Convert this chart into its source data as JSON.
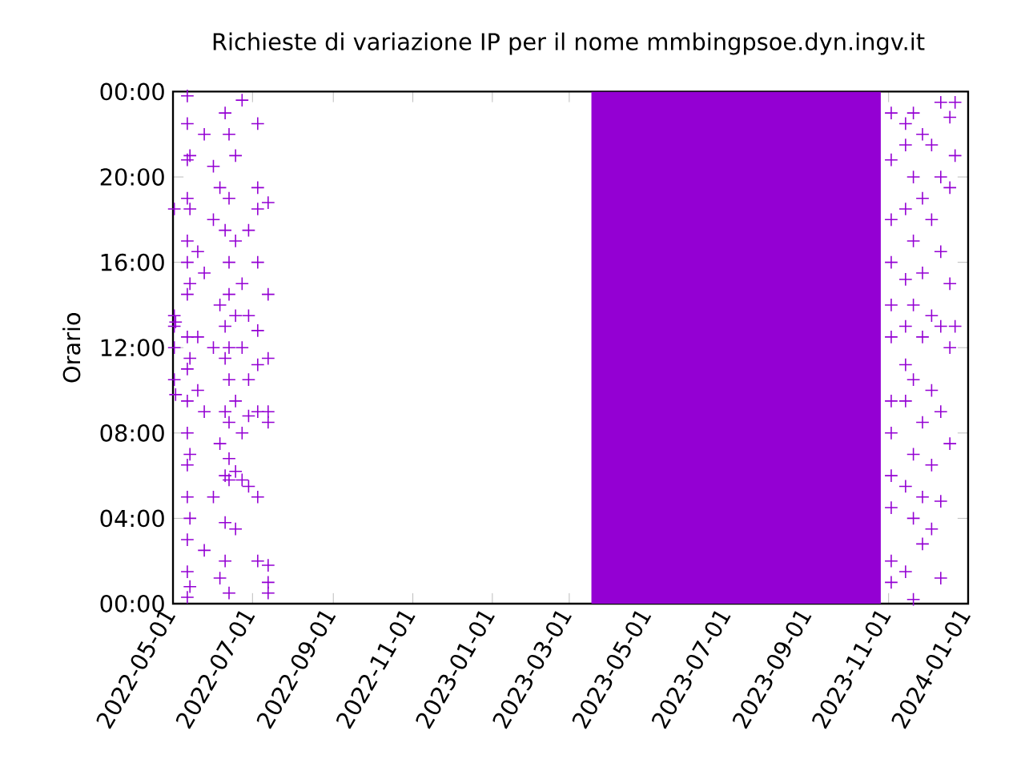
{
  "chart_data": {
    "type": "scatter",
    "title": "Richieste di variazione IP per il nome mmbingpsoe.dyn.ingv.it",
    "ylabel": "Orario",
    "xlim": [
      "2022-05-01",
      "2024-01-01"
    ],
    "xticks": [
      "2022-05-01",
      "2022-07-01",
      "2022-09-01",
      "2022-11-01",
      "2023-01-01",
      "2023-03-01",
      "2023-05-01",
      "2023-07-01",
      "2023-09-01",
      "2023-11-01",
      "2024-01-01"
    ],
    "ylim": [
      0,
      24
    ],
    "yticks": [
      {
        "value": 0,
        "label": "00:00"
      },
      {
        "value": 4,
        "label": "04:00"
      },
      {
        "value": 8,
        "label": "08:00"
      },
      {
        "value": 12,
        "label": "12:00"
      },
      {
        "value": 16,
        "label": "16:00"
      },
      {
        "value": 20,
        "label": "20:00"
      },
      {
        "value": 24,
        "label": "00:00"
      }
    ],
    "marker": "cross",
    "grid": false,
    "bands": [
      {
        "axis": "x",
        "from": "2023-03-18",
        "to": "2023-10-26",
        "color": "#9400d3"
      }
    ],
    "series": [
      {
        "color": "#9400d3",
        "x": [
          "2022-05-02",
          "2022-05-02",
          "2022-05-02",
          "2022-05-02",
          "2022-05-02",
          "2022-05-03",
          "2022-05-03",
          "2022-05-12",
          "2022-05-12",
          "2022-05-12",
          "2022-05-12",
          "2022-05-12",
          "2022-05-12",
          "2022-05-12",
          "2022-05-12",
          "2022-05-12",
          "2022-05-12",
          "2022-05-12",
          "2022-05-12",
          "2022-05-12",
          "2022-05-12",
          "2022-05-12",
          "2022-05-12",
          "2022-05-14",
          "2022-05-14",
          "2022-05-14",
          "2022-05-14",
          "2022-05-14",
          "2022-05-14",
          "2022-05-14",
          "2022-05-20",
          "2022-05-20",
          "2022-05-20",
          "2022-05-25",
          "2022-05-25",
          "2022-05-25",
          "2022-05-25",
          "2022-06-01",
          "2022-06-01",
          "2022-06-01",
          "2022-06-01",
          "2022-06-06",
          "2022-06-06",
          "2022-06-06",
          "2022-06-06",
          "2022-06-10",
          "2022-06-10",
          "2022-06-10",
          "2022-06-10",
          "2022-06-10",
          "2022-06-10",
          "2022-06-10",
          "2022-06-10",
          "2022-06-13",
          "2022-06-13",
          "2022-06-13",
          "2022-06-13",
          "2022-06-13",
          "2022-06-13",
          "2022-06-13",
          "2022-06-13",
          "2022-06-13",
          "2022-06-13",
          "2022-06-18",
          "2022-06-18",
          "2022-06-18",
          "2022-06-18",
          "2022-06-18",
          "2022-06-18",
          "2022-06-23",
          "2022-06-23",
          "2022-06-23",
          "2022-06-23",
          "2022-06-23",
          "2022-06-28",
          "2022-06-28",
          "2022-06-28",
          "2022-06-28",
          "2022-06-28",
          "2022-07-05",
          "2022-07-05",
          "2022-07-05",
          "2022-07-05",
          "2022-07-05",
          "2022-07-05",
          "2022-07-05",
          "2022-07-05",
          "2022-07-05",
          "2022-07-13",
          "2022-07-13",
          "2022-07-13",
          "2022-07-13",
          "2022-07-13",
          "2022-07-13",
          "2022-07-13",
          "2022-07-13",
          "2023-11-03",
          "2023-11-03",
          "2023-11-03",
          "2023-11-03",
          "2023-11-03",
          "2023-11-03",
          "2023-11-03",
          "2023-11-03",
          "2023-11-03",
          "2023-11-03",
          "2023-11-03",
          "2023-11-03",
          "2023-11-14",
          "2023-11-14",
          "2023-11-14",
          "2023-11-14",
          "2023-11-14",
          "2023-11-14",
          "2023-11-14",
          "2023-11-14",
          "2023-11-14",
          "2023-11-20",
          "2023-11-20",
          "2023-11-20",
          "2023-11-20",
          "2023-11-20",
          "2023-11-20",
          "2023-11-20",
          "2023-11-20",
          "2023-11-27",
          "2023-11-27",
          "2023-11-27",
          "2023-11-27",
          "2023-11-27",
          "2023-11-27",
          "2023-11-27",
          "2023-12-04",
          "2023-12-04",
          "2023-12-04",
          "2023-12-04",
          "2023-12-04",
          "2023-12-04",
          "2023-12-11",
          "2023-12-11",
          "2023-12-11",
          "2023-12-11",
          "2023-12-11",
          "2023-12-11",
          "2023-12-11",
          "2023-12-18",
          "2023-12-18",
          "2023-12-18",
          "2023-12-18",
          "2023-12-18",
          "2023-12-22",
          "2023-12-22",
          "2023-12-22"
        ],
        "values": [
          13.5,
          13.0,
          10.5,
          18.5,
          12.0,
          9.8,
          13.2,
          23.8,
          22.5,
          20.8,
          19.0,
          17.0,
          16.0,
          14.5,
          12.5,
          11.0,
          9.5,
          8.0,
          6.5,
          5.0,
          3.0,
          1.5,
          0.3,
          21.0,
          18.5,
          15.0,
          11.5,
          7.0,
          4.0,
          0.8,
          16.5,
          12.5,
          10.0,
          22.0,
          15.5,
          9.0,
          2.5,
          20.5,
          18.0,
          12.0,
          5.0,
          19.5,
          14.0,
          7.5,
          1.2,
          23.0,
          17.5,
          13.0,
          11.5,
          9.0,
          6.0,
          3.8,
          2.0,
          22.0,
          19.0,
          16.0,
          14.5,
          12.0,
          10.5,
          8.5,
          6.8,
          5.8,
          0.5,
          21.0,
          17.0,
          13.5,
          9.5,
          6.2,
          3.5,
          23.6,
          15.0,
          12.0,
          8.0,
          5.8,
          17.5,
          13.5,
          10.5,
          8.8,
          5.5,
          22.5,
          19.5,
          18.5,
          16.0,
          12.8,
          11.2,
          9.0,
          5.0,
          2.0,
          18.8,
          14.5,
          11.5,
          9.0,
          8.5,
          1.8,
          0.5,
          1.0,
          23.0,
          20.8,
          18.0,
          16.0,
          14.0,
          12.5,
          9.5,
          8.0,
          6.0,
          4.5,
          2.0,
          1.0,
          22.5,
          21.5,
          18.5,
          15.2,
          13.0,
          11.2,
          9.5,
          5.5,
          1.5,
          23.0,
          20.0,
          17.0,
          14.0,
          10.5,
          7.0,
          4.0,
          0.2,
          22.0,
          19.0,
          15.5,
          12.5,
          8.5,
          5.0,
          2.8,
          21.5,
          18.0,
          13.5,
          10.0,
          6.5,
          3.5,
          23.5,
          20.0,
          16.5,
          13.0,
          9.0,
          4.8,
          1.2,
          22.8,
          19.5,
          15.0,
          12.0,
          7.5,
          23.5,
          21.0,
          13.0
        ]
      }
    ]
  }
}
